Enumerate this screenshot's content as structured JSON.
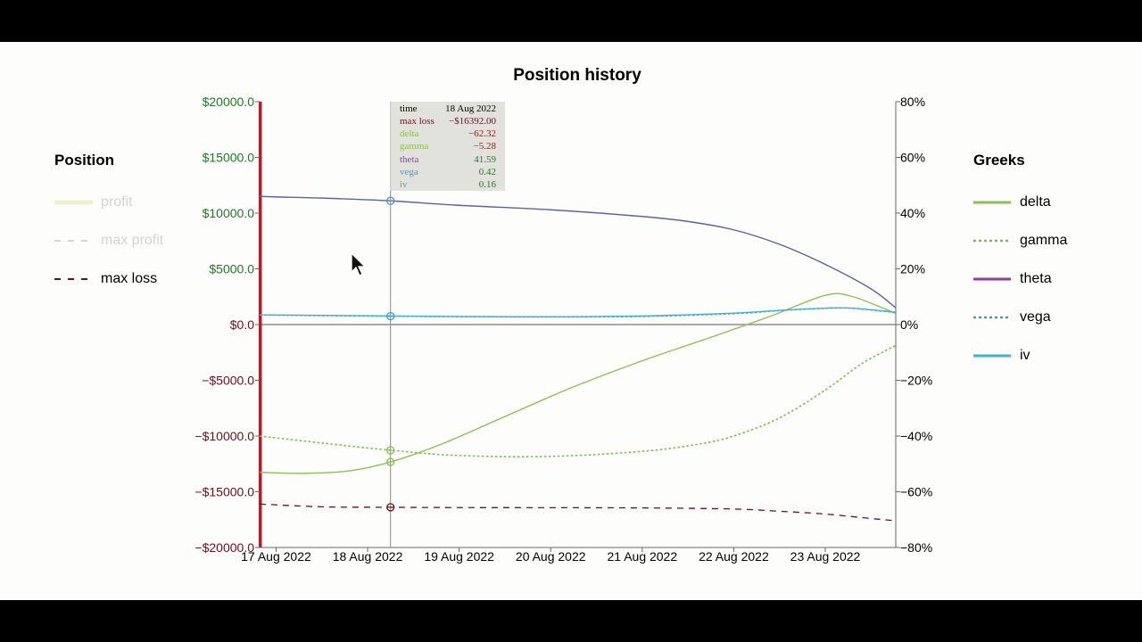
{
  "colors": {
    "profit": "#f0efc8",
    "max_profit": "#d6d6d6",
    "max_loss": "#6b0f22",
    "delta": "#8cc152",
    "gamma": "#7cbd4b",
    "theta": "#8e3ea9",
    "vega": "#3a9ad9",
    "iv": "#3ab2dd",
    "pos_axis": "#1e7b22",
    "neg_axis": "#6b0f22",
    "position_line": "#5f5fa8",
    "red_bar": "#b51c2a"
  },
  "chart_data": {
    "type": "line",
    "title": "Position history",
    "x": [
      "17 Aug 2022",
      "18 Aug 2022",
      "19 Aug 2022",
      "20 Aug 2022",
      "21 Aug 2022",
      "22 Aug 2022",
      "23 Aug 2022"
    ],
    "xtick_labels": [
      "17 Aug 2022",
      "18 Aug 2022",
      "19 Aug 2022",
      "20 Aug 2022",
      "21 Aug 2022",
      "22 Aug 2022",
      "23 Aug 2022"
    ],
    "x_range_days": [
      -0.18,
      6.77
    ],
    "left_axis": {
      "ylim": [
        -20000,
        20000
      ],
      "ticks": [
        "$20000.0",
        "$15000.0",
        "$10000.0",
        "$5000.0",
        "$0.0",
        "−$5000.0",
        "−$10000.0",
        "−$15000.0",
        "−$20000.0"
      ]
    },
    "right_axis": {
      "ylim": [
        -80,
        80
      ],
      "ticks": [
        "80%",
        "60%",
        "40%",
        "20%",
        "0%",
        "−20%",
        "−40%",
        "−60%",
        "−80%"
      ]
    },
    "series": [
      {
        "key": "position",
        "axis": "left",
        "style": "solid",
        "points": [
          [
            -0.18,
            11500
          ],
          [
            0,
            11450
          ],
          [
            0.5,
            11350
          ],
          [
            1.25,
            11100
          ],
          [
            2,
            10700
          ],
          [
            3,
            10300
          ],
          [
            4,
            9700
          ],
          [
            4.5,
            9250
          ],
          [
            5,
            8500
          ],
          [
            5.5,
            7200
          ],
          [
            6,
            5400
          ],
          [
            6.5,
            3200
          ],
          [
            6.77,
            1500
          ]
        ]
      },
      {
        "key": "max_loss",
        "name": "max loss",
        "axis": "left",
        "style": "dashed",
        "points": [
          [
            -0.18,
            -16100
          ],
          [
            0.5,
            -16350
          ],
          [
            1.25,
            -16392
          ],
          [
            2,
            -16420
          ],
          [
            3,
            -16430
          ],
          [
            4,
            -16450
          ],
          [
            5,
            -16550
          ],
          [
            5.5,
            -16750
          ],
          [
            6,
            -17000
          ],
          [
            6.5,
            -17400
          ],
          [
            6.77,
            -17600
          ]
        ]
      },
      {
        "key": "delta",
        "name": "delta",
        "axis": "right",
        "style": "solid",
        "points": [
          [
            -0.18,
            -53
          ],
          [
            0.3,
            -53.4
          ],
          [
            0.8,
            -52.5
          ],
          [
            1.25,
            -49.3
          ],
          [
            1.8,
            -43
          ],
          [
            2.5,
            -33
          ],
          [
            3.2,
            -23
          ],
          [
            4,
            -13
          ],
          [
            4.8,
            -4
          ],
          [
            5.4,
            3
          ],
          [
            6,
            10.5
          ],
          [
            6.3,
            10
          ],
          [
            6.77,
            4
          ]
        ]
      },
      {
        "key": "gamma",
        "name": "gamma",
        "axis": "right",
        "style": "dotted",
        "points": [
          [
            -0.18,
            -40
          ],
          [
            0.5,
            -42.5
          ],
          [
            1.25,
            -45.1
          ],
          [
            2,
            -47
          ],
          [
            3,
            -47.3
          ],
          [
            4,
            -45.5
          ],
          [
            4.6,
            -43
          ],
          [
            5,
            -40
          ],
          [
            5.5,
            -33.5
          ],
          [
            6,
            -23.5
          ],
          [
            6.4,
            -14
          ],
          [
            6.77,
            -7.5
          ]
        ]
      },
      {
        "key": "vega",
        "name": "vega",
        "axis": "right",
        "style": "dotted",
        "points": [
          [
            -0.18,
            3.4
          ],
          [
            0.5,
            3.2
          ],
          [
            1.25,
            3.0
          ],
          [
            2,
            2.8
          ],
          [
            3,
            2.7
          ],
          [
            4,
            2.9
          ],
          [
            5,
            3.9
          ],
          [
            5.5,
            5.0
          ],
          [
            6,
            5.8
          ],
          [
            6.3,
            5.8
          ],
          [
            6.77,
            4.3
          ]
        ]
      },
      {
        "key": "iv",
        "name": "iv",
        "axis": "right",
        "style": "solid",
        "points": [
          [
            -0.18,
            3.5
          ],
          [
            0.5,
            3.3
          ],
          [
            1.25,
            3.1
          ],
          [
            2,
            2.9
          ],
          [
            3,
            2.8
          ],
          [
            4,
            3.1
          ],
          [
            5,
            4.1
          ],
          [
            5.5,
            5.1
          ],
          [
            6,
            5.9
          ],
          [
            6.3,
            5.9
          ],
          [
            6.77,
            4.4
          ]
        ]
      }
    ],
    "hover": {
      "x": 1.25,
      "markers": [
        {
          "axis": "left",
          "value": 11100,
          "color": "#3a9ad9"
        },
        {
          "axis": "right",
          "value": 3.0,
          "color": "#3a9ad9"
        },
        {
          "axis": "right",
          "value": -45.1,
          "color": "#8cc152"
        },
        {
          "axis": "right",
          "value": -49.3,
          "color": "#8cc152"
        },
        {
          "axis": "left",
          "value": -16392,
          "color": "#6b0f22"
        }
      ]
    }
  },
  "position_legend": {
    "heading": "Position",
    "items": [
      {
        "label": "profit",
        "style": "profit-solid",
        "state": "disabled"
      },
      {
        "label": "max profit",
        "style": "max-profit-dashed",
        "state": "disabled"
      },
      {
        "label": "max loss",
        "style": "max-loss-dashed",
        "state": "enabled"
      }
    ]
  },
  "greeks_legend": {
    "heading": "Greeks",
    "items": [
      {
        "label": "delta",
        "style": "solid"
      },
      {
        "label": "gamma",
        "style": "dotted"
      },
      {
        "label": "theta",
        "style": "solid"
      },
      {
        "label": "vega",
        "style": "dotted"
      },
      {
        "label": "iv",
        "style": "solid"
      }
    ]
  },
  "tooltip": {
    "rows": [
      {
        "label": "time",
        "value": "18 Aug 2022"
      },
      {
        "label": "max loss",
        "value": "−$16392.00"
      },
      {
        "label": "delta",
        "value": "−62.32"
      },
      {
        "label": "gamma",
        "value": "−5.28"
      },
      {
        "label": "theta",
        "value": "41.59"
      },
      {
        "label": "vega",
        "value": "0.42"
      },
      {
        "label": "iv",
        "value": "0.16"
      }
    ]
  }
}
